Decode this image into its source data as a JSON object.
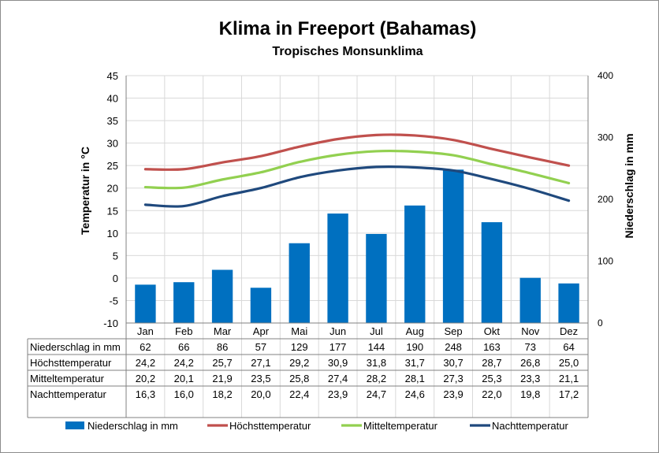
{
  "chart_data": {
    "type": "bar",
    "title": "Klima in Freeport (Bahamas)",
    "subtitle": "Tropisches Monsunklima",
    "categories": [
      "Jan",
      "Feb",
      "Mar",
      "Apr",
      "Mai",
      "Jun",
      "Jul",
      "Aug",
      "Sep",
      "Okt",
      "Nov",
      "Dez"
    ],
    "y_left": {
      "label": "Temperatur in °C",
      "min": -10,
      "max": 45,
      "step": 5
    },
    "y_right": {
      "label": "Niederschlag in mm",
      "min": 0,
      "max": 400,
      "step": 100
    },
    "bars": {
      "name": "Niederschlag in mm",
      "color": "#0070c0",
      "values": [
        62,
        66,
        86,
        57,
        129,
        177,
        144,
        190,
        248,
        163,
        73,
        64
      ],
      "display": [
        "62",
        "66",
        "86",
        "57",
        "129",
        "177",
        "144",
        "190",
        "248",
        "163",
        "73",
        "64"
      ]
    },
    "lines": [
      {
        "name": "Höchsttemperatur",
        "color": "#c0504d",
        "values": [
          24.2,
          24.2,
          25.7,
          27.1,
          29.2,
          30.9,
          31.8,
          31.7,
          30.7,
          28.7,
          26.8,
          25.0
        ],
        "display": [
          "24,2",
          "24,2",
          "25,7",
          "27,1",
          "29,2",
          "30,9",
          "31,8",
          "31,7",
          "30,7",
          "28,7",
          "26,8",
          "25,0"
        ]
      },
      {
        "name": "Mitteltemperatur",
        "color": "#92d050",
        "values": [
          20.2,
          20.1,
          21.9,
          23.5,
          25.8,
          27.4,
          28.2,
          28.1,
          27.3,
          25.3,
          23.3,
          21.1
        ],
        "display": [
          "20,2",
          "20,1",
          "21,9",
          "23,5",
          "25,8",
          "27,4",
          "28,2",
          "28,1",
          "27,3",
          "25,3",
          "23,3",
          "21,1"
        ]
      },
      {
        "name": "Nachttemperatur",
        "color": "#1f497d",
        "values": [
          16.3,
          16.0,
          18.2,
          20.0,
          22.4,
          23.9,
          24.7,
          24.6,
          23.9,
          22.0,
          19.8,
          17.2
        ],
        "display": [
          "16,3",
          "16,0",
          "18,2",
          "20,0",
          "22,4",
          "23,9",
          "24,7",
          "24,6",
          "23,9",
          "22,0",
          "19,8",
          "17,2"
        ]
      }
    ],
    "grid": true,
    "legend_position": "bottom"
  }
}
